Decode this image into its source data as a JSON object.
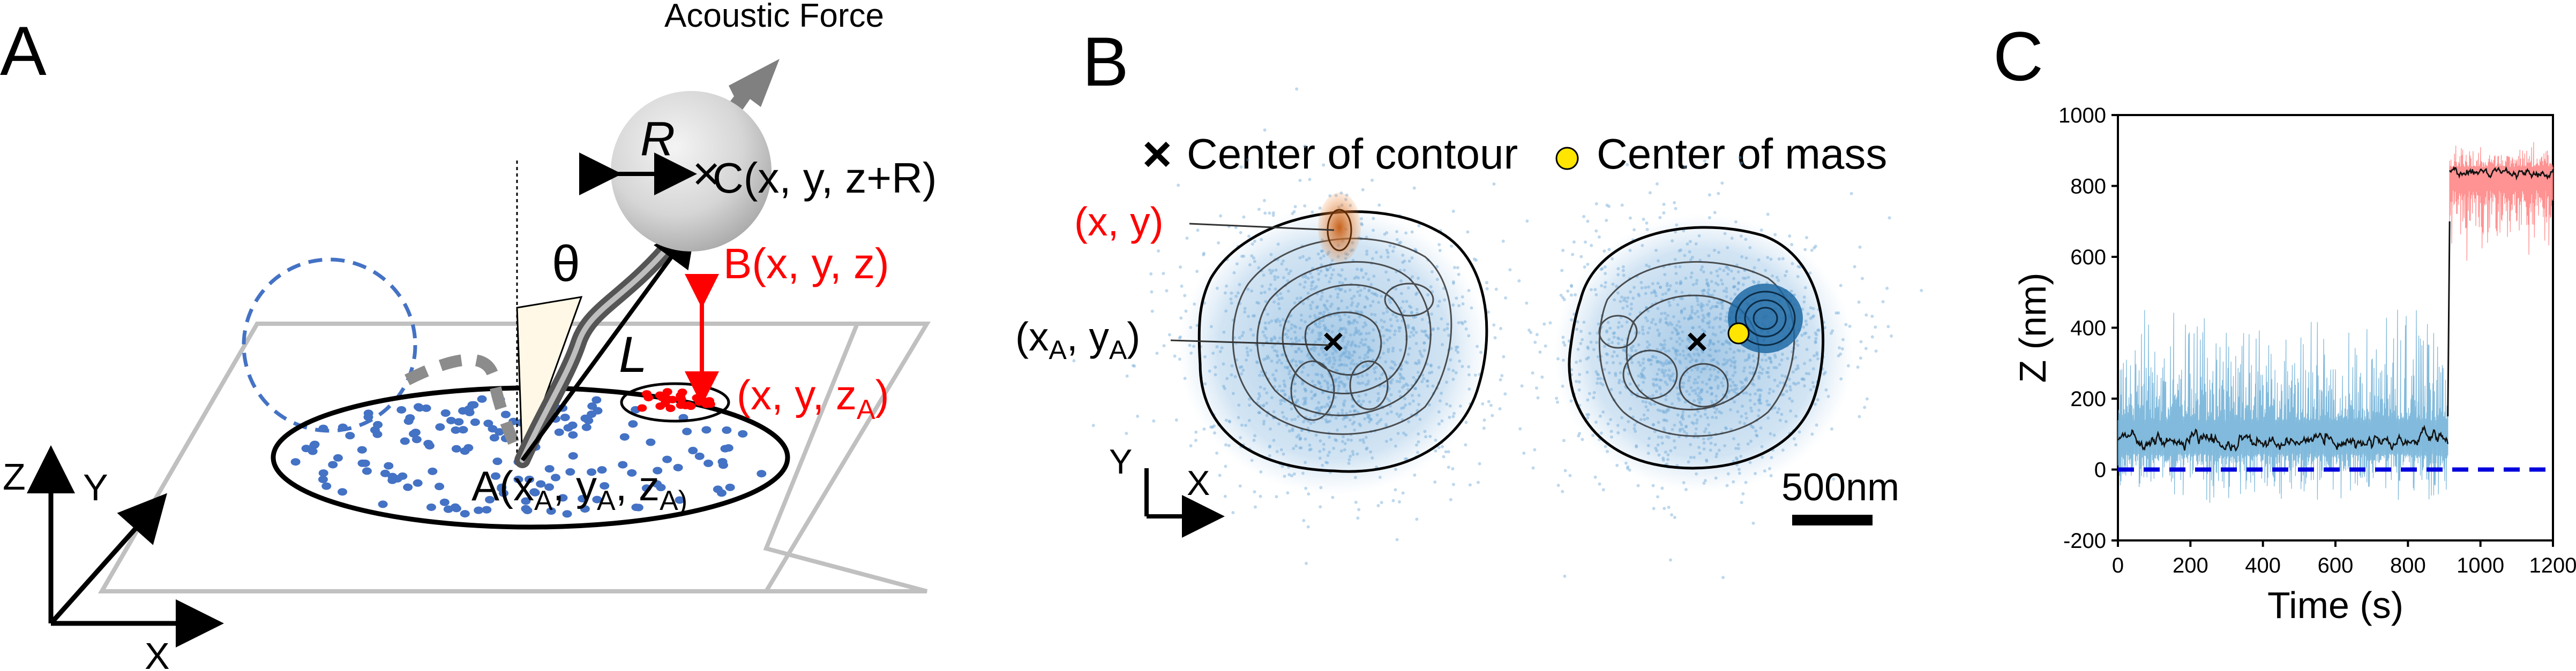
{
  "panel_a": {
    "letter": "A",
    "acoustic_force": "Acoustic Force",
    "radius_label": "R",
    "point_c": "C(x, y, z+R)",
    "theta": "θ",
    "point_b": "B(x, y, z)",
    "length_label": "L",
    "red_point": "(x, y, z",
    "red_point_sub": "A",
    "point_a": "A(x",
    "point_a_sub1": "A",
    "point_a_mid1": ", y",
    "point_a_sub2": "A",
    "point_a_mid2": ", z",
    "point_a_sub3": "A)",
    "axis_z": "Z",
    "axis_y": "Y",
    "axis_x": "X",
    "colors": {
      "dots_blue": "#4472c4",
      "dots_red": "#ff0000",
      "red_text": "#ff0000"
    }
  },
  "panel_b": {
    "letter": "B",
    "legend_cross": "Center of contour",
    "legend_circle": "Center of mass",
    "label_xy": "(x, y)",
    "label_xaya": "(x",
    "label_xaya_sub1": "A",
    "label_xaya_mid": ", y",
    "label_xaya_sub2": "A",
    "label_xaya_end": ")",
    "axis_y": "Y",
    "axis_x": "X",
    "scale_bar": "500nm",
    "colors": {
      "cloud": "#6fa8d6",
      "orange": "#e8731a",
      "com": "#ffe500"
    }
  },
  "panel_c": {
    "letter": "C",
    "colors": {
      "before": "#6baed6",
      "after": "#ff7f7f",
      "mean": "#111111",
      "baseline": "#0000dd"
    }
  },
  "chart_data": {
    "type": "line",
    "xlabel": "Time (s)",
    "ylabel": "Z (nm)",
    "xlim": [
      0,
      1200
    ],
    "ylim": [
      -200,
      1000
    ],
    "xticks": [
      0,
      200,
      400,
      600,
      800,
      1000,
      1200
    ],
    "yticks": [
      -200,
      0,
      200,
      400,
      600,
      800,
      1000
    ],
    "series": [
      {
        "x_range": [
          0,
          910
        ],
        "mean": 80,
        "min": -100,
        "max": 470
      },
      {
        "x_range": [
          915,
          1200
        ],
        "mean": 840,
        "min": 580,
        "max": 930
      }
    ],
    "baseline": 0
  }
}
